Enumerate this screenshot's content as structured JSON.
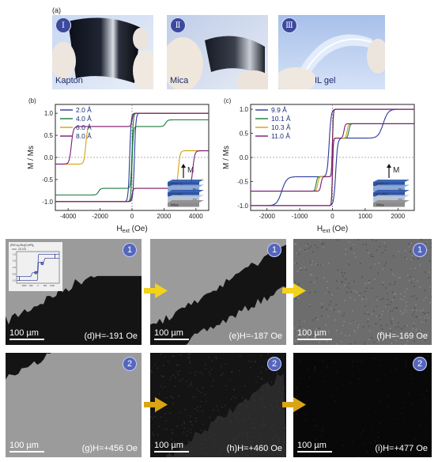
{
  "panel_a": {
    "letter": "(a)",
    "photos": [
      {
        "roman": "Ⅰ",
        "label": "Kapton"
      },
      {
        "roman": "Ⅱ",
        "label": "Mica"
      },
      {
        "roman": "Ⅲ",
        "label": "IL gel"
      }
    ]
  },
  "colors": {
    "navy": "#2b3a9a",
    "green": "#1a7a3a",
    "gold": "#d4a20a",
    "purple": "#7a1a7a",
    "arrow_yellow": "#f2d21a",
    "arrow_gold": "#d9a514"
  },
  "chart_data": [
    {
      "type": "line",
      "panel": "(b)",
      "xlabel_main": "H",
      "xlabel_sub": "ext",
      "xlabel_unit": " (Oe)",
      "ylabel": "M / Ms",
      "xlim": [
        -4800,
        4800
      ],
      "ylim": [
        -1.2,
        1.2
      ],
      "xticks": [
        -4000,
        -2000,
        0,
        2000,
        4000
      ],
      "yticks": [
        -1.0,
        -0.5,
        0.0,
        0.5,
        1.0
      ],
      "legend_loc": "top-left",
      "stack_labels": [
        "(Pt/Co)₂",
        "Ru",
        "(Co/Pt)₂",
        "Cr",
        "Mica"
      ],
      "field_label": "M",
      "series": [
        {
          "name": "2.0 Å",
          "color": "#2b3a9a",
          "kind": "single",
          "hc": 150,
          "w": 90
        },
        {
          "name": "4.0 Å",
          "color": "#1a7a3a",
          "kind": "double",
          "h1": 2100,
          "h2": 700,
          "s": 0.85,
          "w": 130
        },
        {
          "name": "6.0 Å",
          "color": "#d4a20a",
          "kind": "double",
          "h1": 2900,
          "h2": 3100,
          "s": 0.15,
          "w": 110
        },
        {
          "name": "8.0 Å",
          "color": "#7a1a7a",
          "kind": "double",
          "h1": 3800,
          "h2": 3300,
          "s": 0.15,
          "w": 130
        }
      ]
    },
    {
      "type": "line",
      "panel": "(c)",
      "xlabel_main": "H",
      "xlabel_sub": "ext",
      "xlabel_unit": " (Oe)",
      "ylabel": "M / Ms",
      "xlim": [
        -2500,
        2500
      ],
      "ylim": [
        -1.1,
        1.1
      ],
      "xticks": [
        -2000,
        -1000,
        0,
        1000,
        2000
      ],
      "yticks": [
        -1.0,
        -0.5,
        0.0,
        0.5,
        1.0
      ],
      "legend_loc": "top-left",
      "stack_labels": [
        "(Pt/Co)₂",
        "Ru",
        "(Co/Pt)₂",
        "Cr",
        "Mica"
      ],
      "field_label": "M",
      "series": [
        {
          "name": "9.9 Å",
          "color": "#2b3a9a",
          "kind": "asym",
          "h1": 1550,
          "h2": 100,
          "s": 0.7,
          "w": 150
        },
        {
          "name": "10.1 Å",
          "color": "#1a7a3a",
          "kind": "double",
          "h1": 500,
          "h2": 250,
          "s": 0.7,
          "w": 40
        },
        {
          "name": "10.3 Å",
          "color": "#d4a20a",
          "kind": "double",
          "h1": 450,
          "h2": 200,
          "s": 0.7,
          "w": 40
        },
        {
          "name": "11.0 Å",
          "color": "#7a1a7a",
          "kind": "double",
          "h1": 350,
          "h2": 150,
          "s": 0.7,
          "w": 40
        }
      ]
    },
    {
      "type": "line",
      "panel": "inset (d)",
      "title": "(Pt/Co)₂/Ru/(Co/Pt)₂",
      "legend": "10.3 Å",
      "xlim": [
        -1500,
        1500
      ],
      "ylim": [
        -1.2,
        1.2
      ],
      "xticks": [
        -1000,
        -500,
        0,
        500,
        1000
      ],
      "yticks": [
        -1.0,
        -0.5,
        0.0,
        0.5,
        1.0
      ],
      "markers": [
        "1",
        "2"
      ]
    }
  ],
  "micro": [
    {
      "badge": "1",
      "scale": "100 µm",
      "label": "(d)H=-191 Oe"
    },
    {
      "badge": "1",
      "scale": "100 µm",
      "label": "(e)H=-187 Oe"
    },
    {
      "badge": "1",
      "scale": "100 µm",
      "label": "(f)H=-169 Oe"
    },
    {
      "badge": "2",
      "scale": "100 µm",
      "label": "(g)H=+456 Oe"
    },
    {
      "badge": "2",
      "scale": "100 µm",
      "label": "(h)H=+460 Oe"
    },
    {
      "badge": "2",
      "scale": "100 µm",
      "label": "(i)H=+477 Oe"
    }
  ]
}
